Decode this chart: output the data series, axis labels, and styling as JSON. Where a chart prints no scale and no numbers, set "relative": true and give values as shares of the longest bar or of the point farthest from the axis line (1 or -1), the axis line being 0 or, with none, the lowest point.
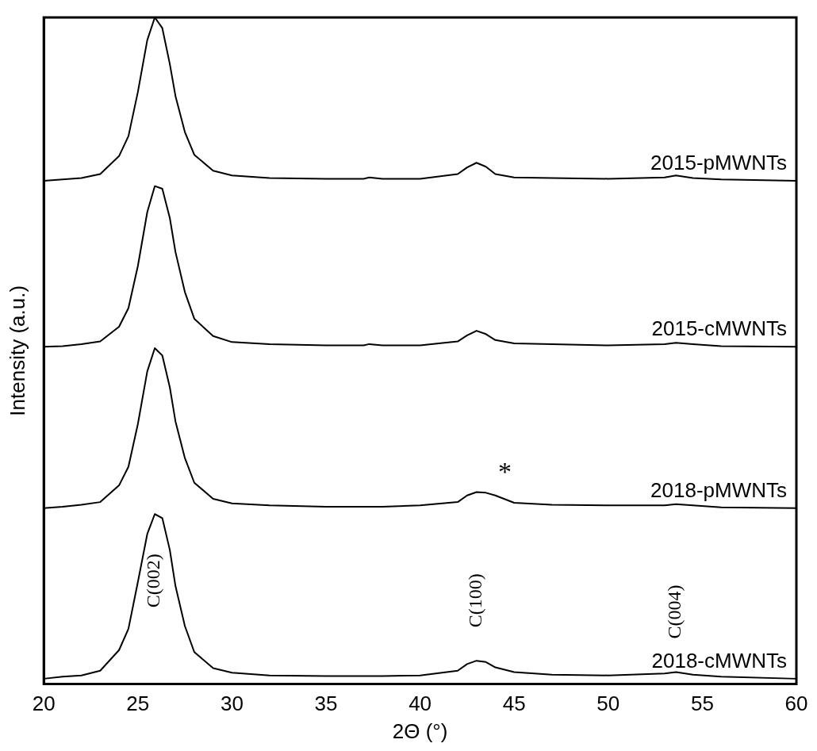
{
  "chart_data": {
    "type": "line",
    "relative": true,
    "xlabel": "2Θ (°)",
    "ylabel": "Intensity (a.u.)",
    "xlim": [
      20,
      60
    ],
    "xticks": [
      20,
      25,
      30,
      35,
      40,
      45,
      50,
      55,
      60
    ],
    "grid": false,
    "legend": false,
    "marker": "none",
    "line_style": "solid",
    "x": [
      20,
      21,
      22,
      23,
      24,
      24.5,
      25,
      25.5,
      25.9,
      26.3,
      26.7,
      27,
      27.5,
      28,
      29,
      30,
      32,
      35,
      37,
      37.3,
      38,
      40,
      42,
      42.5,
      43,
      43.5,
      44,
      45,
      47,
      50,
      53,
      53.6,
      54.5,
      56,
      60
    ],
    "series": [
      {
        "name": "2015-pMWNTs",
        "color": "#000000",
        "values": [
          0.755,
          0.757,
          0.759,
          0.765,
          0.792,
          0.822,
          0.888,
          0.966,
          1.0,
          0.984,
          0.93,
          0.882,
          0.828,
          0.794,
          0.77,
          0.763,
          0.759,
          0.758,
          0.758,
          0.76,
          0.758,
          0.758,
          0.765,
          0.775,
          0.782,
          0.776,
          0.765,
          0.76,
          0.759,
          0.758,
          0.76,
          0.763,
          0.759,
          0.757,
          0.755
        ]
      },
      {
        "name": "2015-cMWNTs",
        "color": "#000000",
        "values": [
          0.506,
          0.507,
          0.51,
          0.514,
          0.536,
          0.564,
          0.627,
          0.708,
          0.747,
          0.743,
          0.699,
          0.648,
          0.588,
          0.548,
          0.522,
          0.513,
          0.51,
          0.508,
          0.508,
          0.51,
          0.508,
          0.508,
          0.514,
          0.523,
          0.53,
          0.525,
          0.516,
          0.511,
          0.51,
          0.508,
          0.51,
          0.512,
          0.51,
          0.507,
          0.506
        ]
      },
      {
        "name": "2018-pMWNTs",
        "color": "#000000",
        "values": [
          0.264,
          0.266,
          0.269,
          0.273,
          0.298,
          0.326,
          0.39,
          0.469,
          0.504,
          0.493,
          0.445,
          0.394,
          0.339,
          0.302,
          0.278,
          0.271,
          0.268,
          0.266,
          0.266,
          0.266,
          0.266,
          0.268,
          0.273,
          0.283,
          0.288,
          0.287,
          0.283,
          0.272,
          0.269,
          0.268,
          0.268,
          0.27,
          0.268,
          0.265,
          0.264
        ]
      },
      {
        "name": "2018-cMWNTs",
        "color": "#000000",
        "values": [
          0.008,
          0.011,
          0.013,
          0.02,
          0.051,
          0.083,
          0.153,
          0.225,
          0.255,
          0.249,
          0.201,
          0.147,
          0.087,
          0.048,
          0.024,
          0.017,
          0.013,
          0.012,
          0.012,
          0.012,
          0.012,
          0.013,
          0.02,
          0.03,
          0.035,
          0.033,
          0.025,
          0.018,
          0.014,
          0.013,
          0.016,
          0.018,
          0.014,
          0.011,
          0.008
        ]
      }
    ],
    "annotations": [
      {
        "text": "C(002)",
        "x": 25.9,
        "y": 0.255
      },
      {
        "text": "C(100)",
        "x": 43,
        "y": 0.035
      },
      {
        "text": "C(004)",
        "x": 53.6,
        "y": 0.018
      },
      {
        "text": "*",
        "x": 44,
        "y": 0.283
      }
    ]
  }
}
